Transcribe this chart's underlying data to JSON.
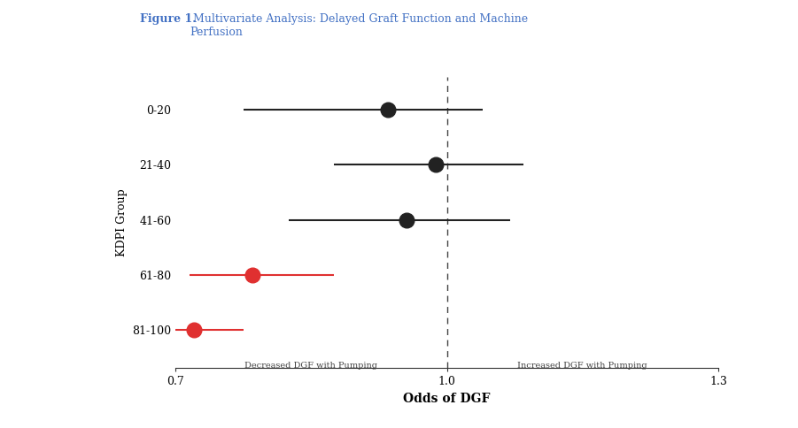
{
  "groups": [
    "0-20",
    "21-40",
    "41-60",
    "61-80",
    "81-100"
  ],
  "centers": [
    0.935,
    0.988,
    0.955,
    0.785,
    0.72
  ],
  "ci_low": [
    0.775,
    0.875,
    0.825,
    0.715,
    0.7
  ],
  "ci_high": [
    1.04,
    1.085,
    1.07,
    0.875,
    0.775
  ],
  "colors": [
    "#222222",
    "#222222",
    "#222222",
    "#e03030",
    "#e03030"
  ],
  "xlim": [
    0.7,
    1.3
  ],
  "xticks": [
    0.7,
    1.0,
    1.3
  ],
  "xticklabels": [
    "0.7",
    "1.0",
    "1.3"
  ],
  "xlabel": "Odds of DGF",
  "ylabel": "KDPI Group",
  "vline_x": 1.0,
  "label_left": "Decreased DGF with Pumping",
  "label_right": "Increased DGF with Pumping",
  "figure_label": "Figure 1.",
  "figure_title": " Multivariate Analysis: Delayed Graft Function and Machine\nPerfusion",
  "figure_label_color": "#4472C4",
  "figure_title_color": "#4472C4",
  "marker_size": 12,
  "line_width": 1.5,
  "background_color": "#ffffff",
  "plot_bg_color": "#ffffff"
}
